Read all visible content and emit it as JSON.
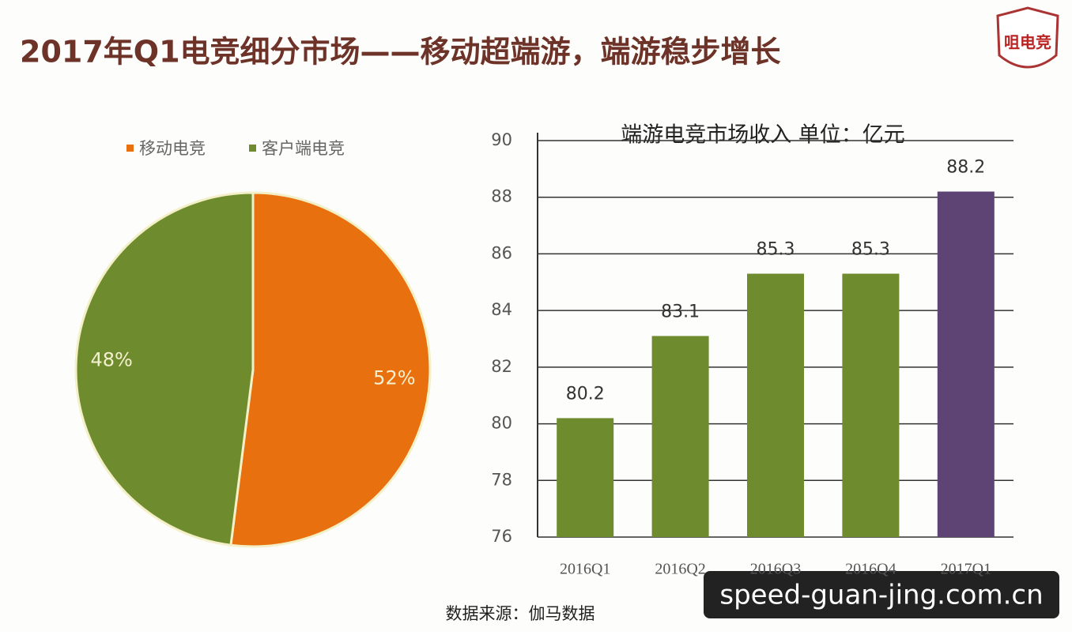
{
  "title": "2017年Q1电竞细分市场——移动超端游，端游稳步增长",
  "logo": "咀电竞",
  "source": "数据来源：伽马数据",
  "watermark": "speed-guan-jing.com.cn",
  "chart_data": [
    {
      "type": "pie",
      "categories": [
        "移动电竞",
        "客户端电竞"
      ],
      "values": [
        52,
        48
      ],
      "value_labels": [
        "52%",
        "48%"
      ],
      "colors": [
        "#e8700f",
        "#6e8b2e"
      ]
    },
    {
      "type": "bar",
      "title": "端游电竞市场收入  单位：亿元",
      "categories": [
        "2016Q1",
        "2016Q2",
        "2016Q3",
        "2016Q4",
        "2017Q1"
      ],
      "values": [
        80.2,
        83.1,
        85.3,
        85.3,
        88.2
      ],
      "colors": [
        "#6e8b2e",
        "#6e8b2e",
        "#6e8b2e",
        "#6e8b2e",
        "#5e4474"
      ],
      "ylim": [
        76,
        90
      ],
      "yticks": [
        76,
        78,
        80,
        82,
        84,
        86,
        88,
        90
      ],
      "grid": true
    }
  ]
}
